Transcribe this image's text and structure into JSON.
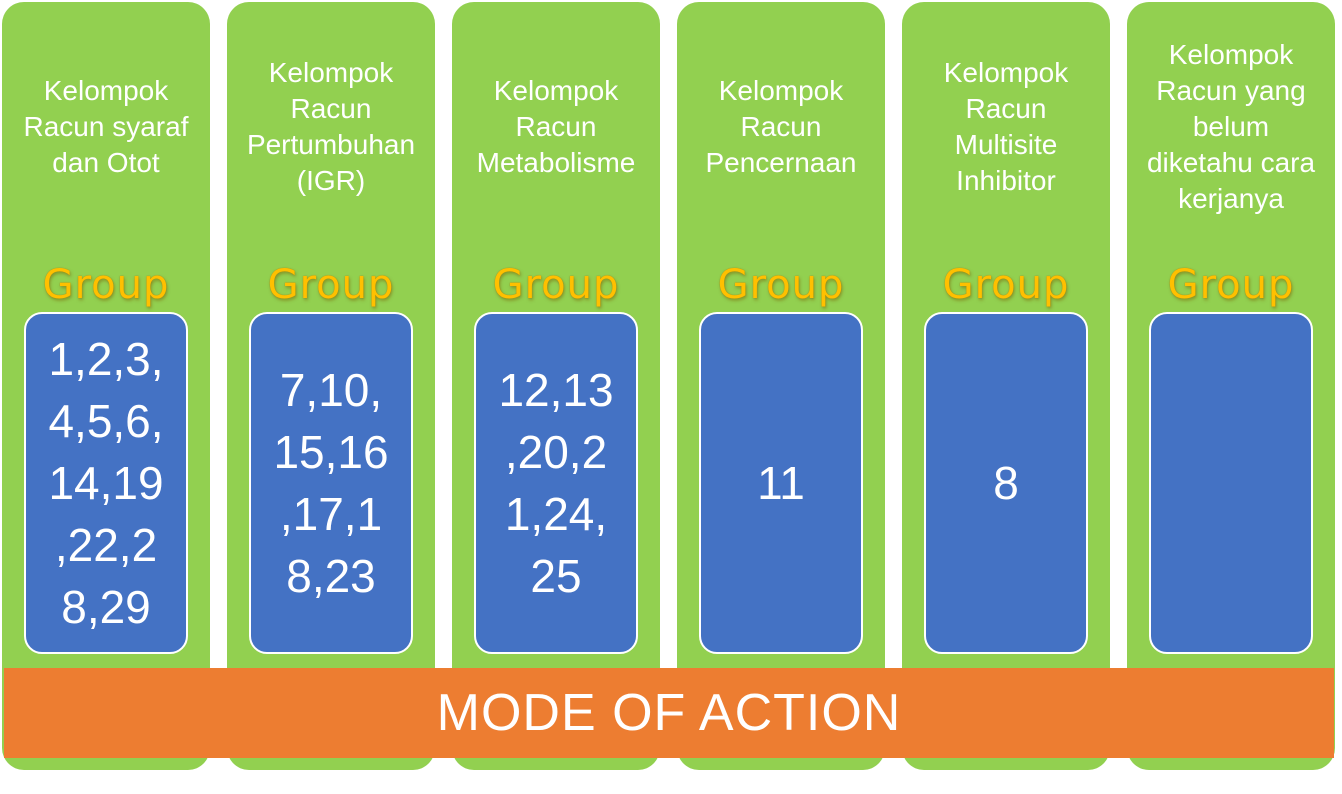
{
  "groups": [
    {
      "title": "Kelompok\nRacun syaraf\ndan Otot",
      "group_label": "Group",
      "numbers": "1,2,3,\n4,5,6,\n14,19\n,22,2\n8,29"
    },
    {
      "title": "Kelompok\nRacun\nPertumbuhan\n(IGR)",
      "group_label": "Group",
      "numbers": "7,10,\n15,16\n,17,1\n8,23"
    },
    {
      "title": "Kelompok\nRacun\nMetabolisme",
      "group_label": "Group",
      "numbers": "12,13\n,20,2\n1,24,\n25"
    },
    {
      "title": "Kelompok\nRacun\nPencernaan",
      "group_label": "Group",
      "numbers": "11"
    },
    {
      "title": "Kelompok\nRacun\nMultisite\nInhibitor",
      "group_label": "Group",
      "numbers": "8"
    },
    {
      "title": "Kelompok\nRacun yang\nbelum\ndiketahu cara\nkerjanya",
      "group_label": "Group",
      "numbers": ""
    }
  ],
  "banner": {
    "label": "MODE OF ACTION"
  },
  "colors": {
    "column_green": "#92d050",
    "box_blue": "#4472c4",
    "banner_orange": "#ed7d31",
    "group_gold": "#ffc000"
  }
}
